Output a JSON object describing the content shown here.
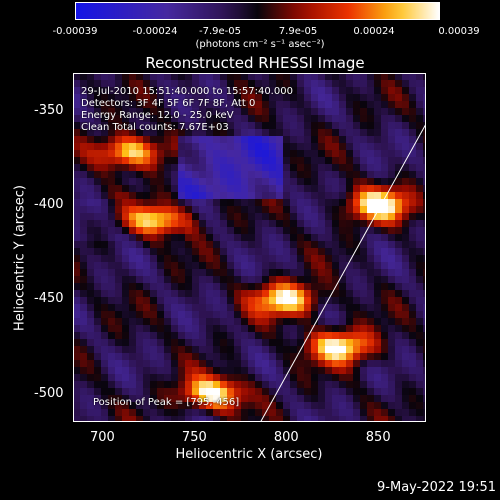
{
  "colorbar": {
    "ticks": [
      "-0.00039",
      "-0.00024",
      "-7.9e-05",
      "7.9e-05",
      "0.00024",
      "0.00039"
    ],
    "unit": "(photons cm⁻² s⁻¹ asec⁻²)"
  },
  "title": "Reconstructed RHESSI Image",
  "annotations": {
    "time": "29-Jul-2010 15:51:40.000 to 15:57:40.000",
    "detectors": "Detectors: 3F 4F 5F 6F 7F 8F, Att 0",
    "energy": "Energy Range: 12.0 - 25.0 keV",
    "clean": "Clean     Total counts: 7.67E+03",
    "peak": "Position of Peak = [795,-456]"
  },
  "footer": "9-May-2022 19:51",
  "chart_data": {
    "type": "heatmap",
    "title": "Reconstructed RHESSI Image",
    "xlabel": "Heliocentric X (arcsec)",
    "ylabel": "Heliocentric Y (arcsec)",
    "xlim": [
      684,
      876
    ],
    "ylim": [
      -515,
      -330
    ],
    "xticks": [
      700,
      750,
      800,
      850
    ],
    "yticks": [
      -350,
      -400,
      -450,
      -500
    ],
    "colorbar_range": [
      -0.00039,
      0.00039
    ],
    "colormap": "blue-purple-black-red-yellow-white",
    "peak_position": [
      795,
      -456
    ],
    "limb_line": [
      [
        786,
        -515
      ],
      [
        876,
        -357
      ]
    ],
    "bright_regions": [
      {
        "x": 715,
        "y": -372
      },
      {
        "x": 730,
        "y": -408
      },
      {
        "x": 800,
        "y": -450
      },
      {
        "x": 760,
        "y": -500
      },
      {
        "x": 830,
        "y": -475
      },
      {
        "x": 850,
        "y": -400
      }
    ],
    "colors": {
      "background": "#000000",
      "text": "#ffffff",
      "negative": "#1e18c8",
      "neutral": "#2c1246",
      "positive": "#e02000",
      "max": "#ffffff"
    }
  }
}
